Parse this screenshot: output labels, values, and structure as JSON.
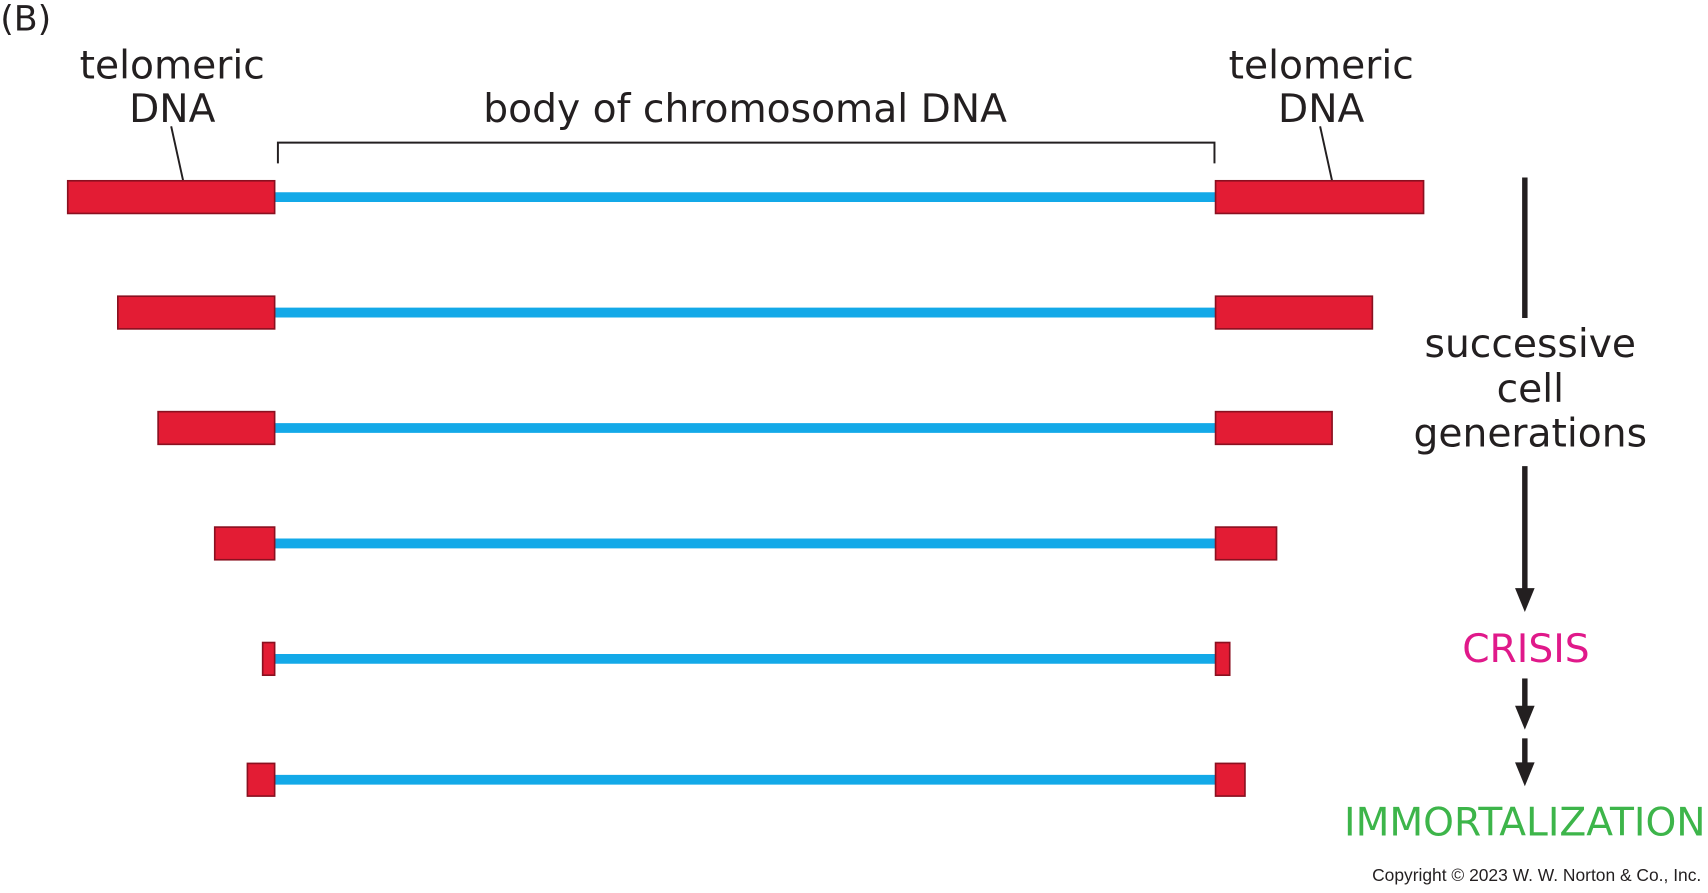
{
  "panel_label": "(B)",
  "left_label": [
    "telomeric",
    "DNA"
  ],
  "right_label": [
    "telomeric",
    "DNA"
  ],
  "body_label": "body of chromosomal DNA",
  "side_label": [
    "successive",
    "cell",
    "generations"
  ],
  "crisis": "CRISIS",
  "immortalization": "IMMORTALIZATION",
  "copyright": "Copyright © 2023 W. W. Norton & Co., Inc."
}
